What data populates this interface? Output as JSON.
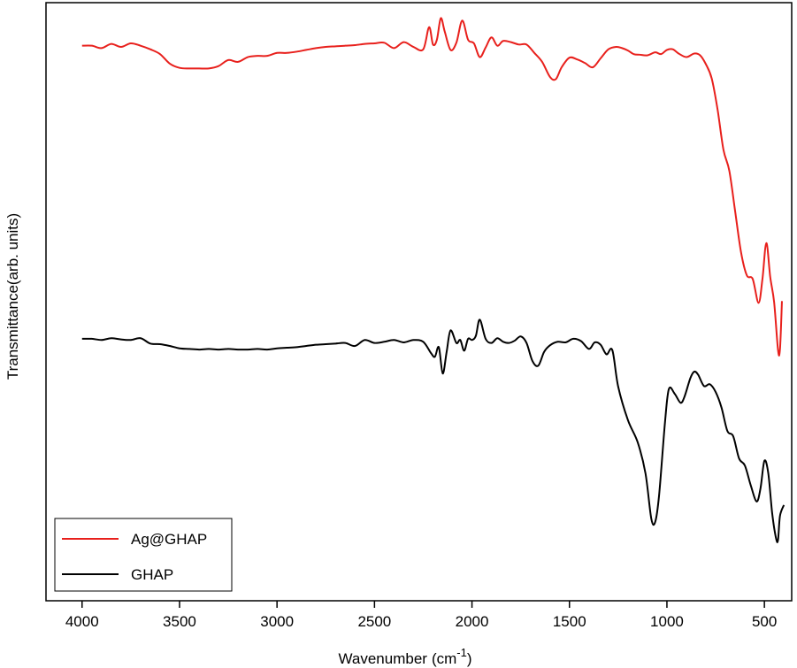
{
  "chart_data": {
    "type": "line",
    "xlabel": "Wavenumber",
    "xunit_prefix": "(cm",
    "xunit_sup": "-1",
    "xunit_suffix": ")",
    "ylabel": "Transmittance(arb. units)",
    "xlim": [
      4185,
      360
    ],
    "x_reversed": true,
    "x_ticks": [
      4000,
      3500,
      3000,
      2500,
      2000,
      1500,
      1000,
      500
    ],
    "y_ticks_shown": false,
    "grid": false,
    "legend_position": "bottom-left",
    "ylim": [
      0,
      100
    ],
    "series": [
      {
        "name": "Ag@GHAP",
        "color": "#e8201c",
        "points": [
          [
            4000,
            92.8
          ],
          [
            3950,
            92.8
          ],
          [
            3900,
            92.4
          ],
          [
            3850,
            93.1
          ],
          [
            3800,
            92.6
          ],
          [
            3750,
            93.2
          ],
          [
            3700,
            92.8
          ],
          [
            3650,
            92.2
          ],
          [
            3600,
            91.4
          ],
          [
            3550,
            89.8
          ],
          [
            3500,
            89.1
          ],
          [
            3450,
            89.0
          ],
          [
            3400,
            89.0
          ],
          [
            3350,
            89.0
          ],
          [
            3300,
            89.4
          ],
          [
            3250,
            90.4
          ],
          [
            3200,
            90.1
          ],
          [
            3150,
            90.9
          ],
          [
            3100,
            91.1
          ],
          [
            3050,
            91.1
          ],
          [
            3000,
            91.6
          ],
          [
            2950,
            91.6
          ],
          [
            2900,
            91.8
          ],
          [
            2850,
            92.1
          ],
          [
            2800,
            92.4
          ],
          [
            2750,
            92.6
          ],
          [
            2700,
            92.7
          ],
          [
            2650,
            92.8
          ],
          [
            2600,
            92.9
          ],
          [
            2550,
            93.1
          ],
          [
            2500,
            93.2
          ],
          [
            2450,
            93.3
          ],
          [
            2400,
            92.4
          ],
          [
            2350,
            93.4
          ],
          [
            2300,
            92.6
          ],
          [
            2250,
            92.2
          ],
          [
            2220,
            95.9
          ],
          [
            2200,
            93.0
          ],
          [
            2180,
            93.8
          ],
          [
            2160,
            97.4
          ],
          [
            2140,
            95.2
          ],
          [
            2110,
            92.1
          ],
          [
            2080,
            93.3
          ],
          [
            2050,
            97.0
          ],
          [
            2020,
            93.8
          ],
          [
            1990,
            93.2
          ],
          [
            1960,
            90.9
          ],
          [
            1930,
            92.5
          ],
          [
            1900,
            94.2
          ],
          [
            1870,
            92.8
          ],
          [
            1840,
            93.6
          ],
          [
            1800,
            93.4
          ],
          [
            1760,
            93.0
          ],
          [
            1720,
            93.0
          ],
          [
            1680,
            91.6
          ],
          [
            1640,
            90.1
          ],
          [
            1600,
            87.6
          ],
          [
            1570,
            87.2
          ],
          [
            1540,
            89.2
          ],
          [
            1500,
            90.8
          ],
          [
            1460,
            90.5
          ],
          [
            1420,
            89.9
          ],
          [
            1380,
            89.2
          ],
          [
            1340,
            90.7
          ],
          [
            1300,
            92.2
          ],
          [
            1260,
            92.6
          ],
          [
            1230,
            92.4
          ],
          [
            1200,
            92.0
          ],
          [
            1170,
            91.4
          ],
          [
            1140,
            91.3
          ],
          [
            1100,
            91.2
          ],
          [
            1060,
            91.7
          ],
          [
            1030,
            91.4
          ],
          [
            1000,
            92.1
          ],
          [
            970,
            92.2
          ],
          [
            940,
            91.5
          ],
          [
            900,
            90.9
          ],
          [
            860,
            91.5
          ],
          [
            830,
            91.2
          ],
          [
            800,
            89.7
          ],
          [
            770,
            87.3
          ],
          [
            740,
            82.1
          ],
          [
            710,
            75.4
          ],
          [
            680,
            71.9
          ],
          [
            650,
            65.1
          ],
          [
            620,
            58.3
          ],
          [
            590,
            54.4
          ],
          [
            560,
            53.8
          ],
          [
            530,
            49.8
          ],
          [
            510,
            53.8
          ],
          [
            490,
            59.8
          ],
          [
            470,
            54.1
          ],
          [
            450,
            49.9
          ],
          [
            430,
            41.9
          ],
          [
            420,
            42.1
          ],
          [
            410,
            50.1
          ]
        ]
      },
      {
        "name": "GHAP",
        "color": "#000000",
        "points": [
          [
            4000,
            43.8
          ],
          [
            3950,
            43.8
          ],
          [
            3900,
            43.6
          ],
          [
            3850,
            43.9
          ],
          [
            3800,
            43.7
          ],
          [
            3750,
            43.6
          ],
          [
            3700,
            43.9
          ],
          [
            3650,
            43.0
          ],
          [
            3600,
            42.9
          ],
          [
            3550,
            42.6
          ],
          [
            3500,
            42.2
          ],
          [
            3450,
            42.1
          ],
          [
            3400,
            42.0
          ],
          [
            3350,
            42.1
          ],
          [
            3300,
            42.0
          ],
          [
            3250,
            42.1
          ],
          [
            3200,
            42.0
          ],
          [
            3150,
            42.0
          ],
          [
            3100,
            42.1
          ],
          [
            3050,
            42.0
          ],
          [
            3000,
            42.2
          ],
          [
            2950,
            42.3
          ],
          [
            2900,
            42.4
          ],
          [
            2850,
            42.6
          ],
          [
            2800,
            42.8
          ],
          [
            2750,
            42.9
          ],
          [
            2700,
            43.0
          ],
          [
            2650,
            43.1
          ],
          [
            2600,
            42.6
          ],
          [
            2550,
            43.6
          ],
          [
            2500,
            43.1
          ],
          [
            2450,
            43.3
          ],
          [
            2400,
            43.6
          ],
          [
            2350,
            43.2
          ],
          [
            2300,
            43.6
          ],
          [
            2250,
            43.3
          ],
          [
            2210,
            41.4
          ],
          [
            2190,
            40.8
          ],
          [
            2170,
            42.4
          ],
          [
            2150,
            38.0
          ],
          [
            2130,
            41.6
          ],
          [
            2110,
            45.2
          ],
          [
            2080,
            43.1
          ],
          [
            2060,
            43.6
          ],
          [
            2040,
            41.8
          ],
          [
            2020,
            43.8
          ],
          [
            2000,
            43.6
          ],
          [
            1980,
            44.3
          ],
          [
            1960,
            47.0
          ],
          [
            1930,
            43.8
          ],
          [
            1900,
            43.1
          ],
          [
            1870,
            43.9
          ],
          [
            1840,
            43.3
          ],
          [
            1810,
            43.1
          ],
          [
            1780,
            43.5
          ],
          [
            1750,
            44.2
          ],
          [
            1720,
            43.1
          ],
          [
            1690,
            40.1
          ],
          [
            1660,
            39.3
          ],
          [
            1630,
            41.6
          ],
          [
            1600,
            42.7
          ],
          [
            1560,
            43.3
          ],
          [
            1520,
            43.2
          ],
          [
            1480,
            43.8
          ],
          [
            1440,
            43.4
          ],
          [
            1400,
            42.1
          ],
          [
            1370,
            43.2
          ],
          [
            1340,
            42.8
          ],
          [
            1310,
            41.2
          ],
          [
            1280,
            41.9
          ],
          [
            1250,
            35.8
          ],
          [
            1200,
            30.2
          ],
          [
            1150,
            26.5
          ],
          [
            1110,
            21.3
          ],
          [
            1080,
            13.7
          ],
          [
            1060,
            13.2
          ],
          [
            1040,
            17.7
          ],
          [
            1010,
            29.8
          ],
          [
            990,
            35.4
          ],
          [
            960,
            34.6
          ],
          [
            930,
            33.1
          ],
          [
            910,
            34.1
          ],
          [
            880,
            37.2
          ],
          [
            860,
            38.3
          ],
          [
            840,
            37.8
          ],
          [
            810,
            35.9
          ],
          [
            780,
            36.2
          ],
          [
            750,
            34.9
          ],
          [
            720,
            32.3
          ],
          [
            690,
            28.4
          ],
          [
            660,
            27.5
          ],
          [
            630,
            23.8
          ],
          [
            600,
            22.6
          ],
          [
            570,
            19.3
          ],
          [
            540,
            16.6
          ],
          [
            520,
            18.8
          ],
          [
            500,
            23.4
          ],
          [
            480,
            21.3
          ],
          [
            460,
            14.6
          ],
          [
            440,
            10.4
          ],
          [
            430,
            10.2
          ],
          [
            420,
            14.2
          ],
          [
            400,
            16.0
          ]
        ]
      }
    ],
    "legend": [
      {
        "label": "Ag@GHAP",
        "color": "#e8201c"
      },
      {
        "label": "GHAP",
        "color": "#000000"
      }
    ]
  }
}
